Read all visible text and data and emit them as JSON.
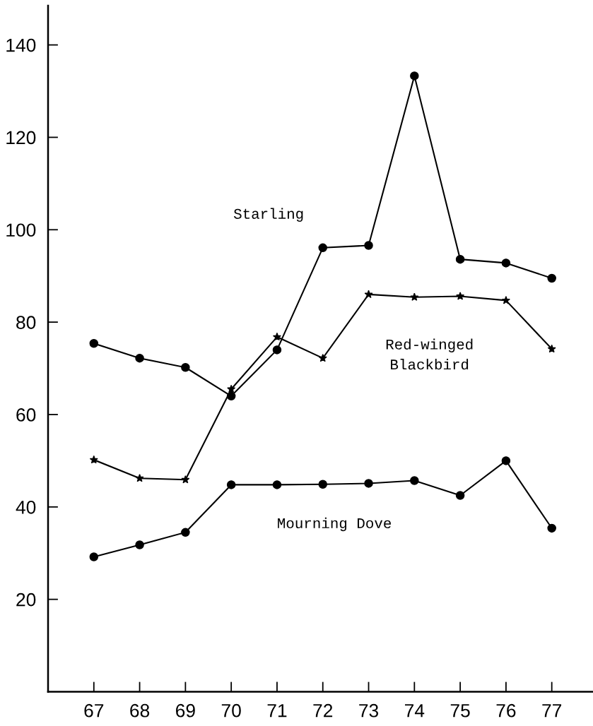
{
  "chart_data": {
    "type": "line",
    "x": [
      67,
      68,
      69,
      70,
      71,
      72,
      73,
      74,
      75,
      76,
      77
    ],
    "series": [
      {
        "name": "Starling",
        "color": "#000000",
        "marker": "circle",
        "values": [
          75.4,
          72.2,
          70.2,
          64,
          74,
          96.1,
          96.6,
          133.3,
          93.6,
          92.8,
          89.5
        ]
      },
      {
        "name": "Red-winged\nBlackbird",
        "color": "#000000",
        "marker": "star",
        "values": [
          50.2,
          46.2,
          45.9,
          65.5,
          76.8,
          72.2,
          86,
          85.4,
          85.6,
          84.7,
          74.2
        ]
      },
      {
        "name": "Mourning Dove",
        "color": "#000000",
        "marker": "circle",
        "values": [
          29.2,
          31.8,
          34.5,
          44.8,
          44.8,
          44.9,
          45.1,
          45.7,
          42.5,
          50,
          35.4
        ]
      }
    ],
    "xlim": [
      66,
      77.9
    ],
    "ylim": [
      0,
      148.5
    ],
    "xticks": [
      67,
      68,
      69,
      70,
      71,
      72,
      73,
      74,
      75,
      76,
      77
    ],
    "yticks": [
      20,
      40,
      60,
      80,
      100,
      120,
      140
    ],
    "grid": false,
    "legend": false,
    "line_style": "solid"
  }
}
